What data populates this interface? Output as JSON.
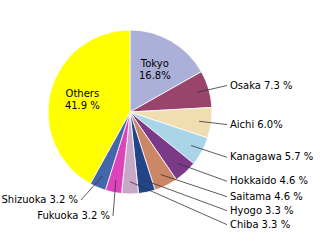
{
  "chart_data": {
    "type": "pie",
    "categories": [
      "Tokyo",
      "Osaka",
      "Aichi",
      "Kanagawa",
      "Hokkaido",
      "Saitama",
      "Hyogo",
      "Chiba",
      "Fukuoka",
      "Shizuoka",
      "Others"
    ],
    "values": [
      16.8,
      7.3,
      6.0,
      5.7,
      4.6,
      4.6,
      3.3,
      3.3,
      3.2,
      3.2,
      41.9
    ],
    "value_labels": [
      "16.8%",
      "7.3 %",
      "6.0%",
      "5.7 %",
      "4.6 %",
      "4.6 %",
      "3.3 %",
      "3.3 %",
      "3.2 %",
      "3.2 %",
      "41.9 %"
    ],
    "colors": [
      "#aab0d8",
      "#99446a",
      "#f0ddb0",
      "#aad4e8",
      "#7a3a88",
      "#cc8866",
      "#224488",
      "#c8a8c8",
      "#dd44bb",
      "#4466aa",
      "#ffff00"
    ],
    "data_labels": true
  }
}
